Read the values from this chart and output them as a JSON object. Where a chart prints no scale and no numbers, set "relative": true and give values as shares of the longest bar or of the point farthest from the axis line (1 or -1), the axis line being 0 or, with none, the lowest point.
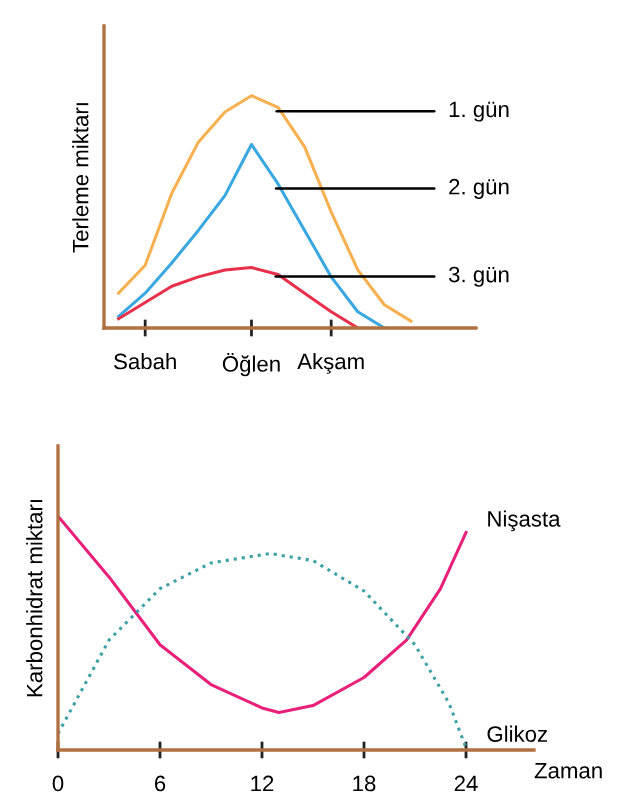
{
  "chart_data": [
    {
      "type": "line",
      "ylabel": "Terleme miktarı",
      "relative": true,
      "categories": [
        null,
        "Sabah",
        null,
        null,
        null,
        "Öğlen",
        null,
        null,
        "Akşam",
        null,
        null,
        null,
        null
      ],
      "grid": false,
      "legend": false,
      "marker": "none",
      "series": [
        {
          "name": "1. gün",
          "color": "#f7b050",
          "values": [
            0.15,
            0.27,
            0.58,
            0.8,
            0.93,
            1.0,
            0.95,
            0.78,
            0.5,
            0.25,
            0.1,
            0.03,
            null
          ]
        },
        {
          "name": "2. gün",
          "color": "#3aa8e0",
          "values": [
            0.05,
            0.15,
            0.28,
            0.42,
            0.57,
            0.79,
            0.62,
            0.42,
            0.22,
            0.07,
            0,
            null,
            null
          ]
        },
        {
          "name": "3. gün",
          "color": "#e8304a",
          "values": [
            0.04,
            0.11,
            0.18,
            0.22,
            0.25,
            0.26,
            0.23,
            0.15,
            0.07,
            0,
            null,
            null,
            null
          ]
        }
      ]
    },
    {
      "type": "line",
      "ylabel": "Karbonhidrat miktarı",
      "xlabel": "Zaman",
      "relative": true,
      "xlim": [
        0,
        28
      ],
      "xticks": [
        0,
        6,
        12,
        18,
        24
      ],
      "grid": false,
      "legend": false,
      "marker": "none",
      "series": [
        {
          "name": "Nişasta",
          "color": "#e8207a",
          "line_style": "solid",
          "x": [
            0,
            3,
            6,
            9,
            12,
            13,
            15,
            18,
            20.5,
            22.5,
            24
          ],
          "values": [
            1.0,
            0.74,
            0.45,
            0.28,
            0.18,
            0.16,
            0.19,
            0.31,
            0.47,
            0.69,
            0.93
          ]
        },
        {
          "name": "Glikoz",
          "color": "#3aa0a8",
          "line_style": "dotted",
          "x": [
            0,
            3,
            6,
            9,
            12.5,
            15,
            18,
            21,
            23,
            24
          ],
          "values": [
            0.07,
            0.47,
            0.69,
            0.8,
            0.84,
            0.81,
            0.68,
            0.45,
            0.2,
            0.01
          ]
        }
      ]
    }
  ]
}
